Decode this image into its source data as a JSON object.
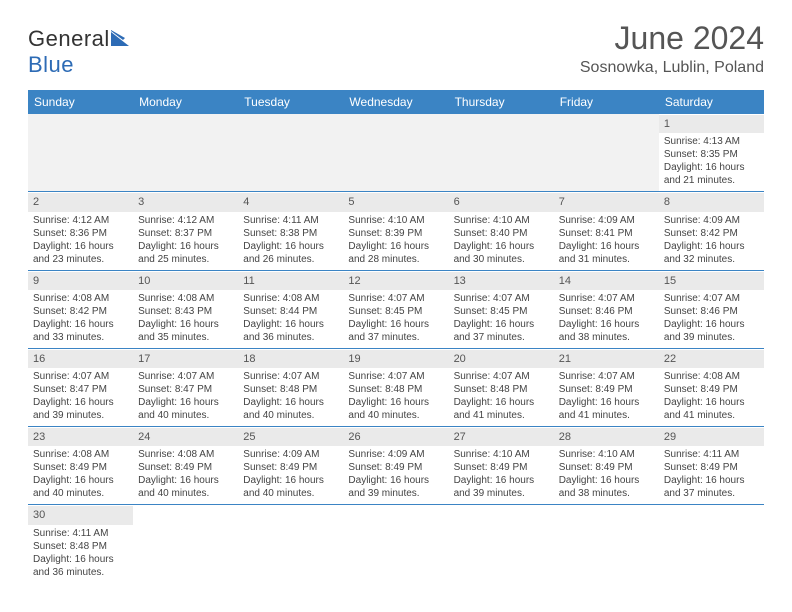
{
  "logo": {
    "text_general": "General",
    "text_blue": "Blue"
  },
  "title": {
    "month": "June 2024",
    "location": "Sosnowka, Lublin, Poland"
  },
  "colors": {
    "header_bg": "#3b84c4",
    "header_text": "#ffffff",
    "daynum_bg": "#eaeaea",
    "empty_bg": "#f2f2f2",
    "rule": "#3b84c4",
    "logo_blue": "#2d6bb5"
  },
  "weekdays": [
    "Sunday",
    "Monday",
    "Tuesday",
    "Wednesday",
    "Thursday",
    "Friday",
    "Saturday"
  ],
  "weeks": [
    [
      null,
      null,
      null,
      null,
      null,
      null,
      {
        "n": "1",
        "sr": "4:13 AM",
        "ss": "8:35 PM",
        "dl": "16 hours and 21 minutes."
      }
    ],
    [
      {
        "n": "2",
        "sr": "4:12 AM",
        "ss": "8:36 PM",
        "dl": "16 hours and 23 minutes."
      },
      {
        "n": "3",
        "sr": "4:12 AM",
        "ss": "8:37 PM",
        "dl": "16 hours and 25 minutes."
      },
      {
        "n": "4",
        "sr": "4:11 AM",
        "ss": "8:38 PM",
        "dl": "16 hours and 26 minutes."
      },
      {
        "n": "5",
        "sr": "4:10 AM",
        "ss": "8:39 PM",
        "dl": "16 hours and 28 minutes."
      },
      {
        "n": "6",
        "sr": "4:10 AM",
        "ss": "8:40 PM",
        "dl": "16 hours and 30 minutes."
      },
      {
        "n": "7",
        "sr": "4:09 AM",
        "ss": "8:41 PM",
        "dl": "16 hours and 31 minutes."
      },
      {
        "n": "8",
        "sr": "4:09 AM",
        "ss": "8:42 PM",
        "dl": "16 hours and 32 minutes."
      }
    ],
    [
      {
        "n": "9",
        "sr": "4:08 AM",
        "ss": "8:42 PM",
        "dl": "16 hours and 33 minutes."
      },
      {
        "n": "10",
        "sr": "4:08 AM",
        "ss": "8:43 PM",
        "dl": "16 hours and 35 minutes."
      },
      {
        "n": "11",
        "sr": "4:08 AM",
        "ss": "8:44 PM",
        "dl": "16 hours and 36 minutes."
      },
      {
        "n": "12",
        "sr": "4:07 AM",
        "ss": "8:45 PM",
        "dl": "16 hours and 37 minutes."
      },
      {
        "n": "13",
        "sr": "4:07 AM",
        "ss": "8:45 PM",
        "dl": "16 hours and 37 minutes."
      },
      {
        "n": "14",
        "sr": "4:07 AM",
        "ss": "8:46 PM",
        "dl": "16 hours and 38 minutes."
      },
      {
        "n": "15",
        "sr": "4:07 AM",
        "ss": "8:46 PM",
        "dl": "16 hours and 39 minutes."
      }
    ],
    [
      {
        "n": "16",
        "sr": "4:07 AM",
        "ss": "8:47 PM",
        "dl": "16 hours and 39 minutes."
      },
      {
        "n": "17",
        "sr": "4:07 AM",
        "ss": "8:47 PM",
        "dl": "16 hours and 40 minutes."
      },
      {
        "n": "18",
        "sr": "4:07 AM",
        "ss": "8:48 PM",
        "dl": "16 hours and 40 minutes."
      },
      {
        "n": "19",
        "sr": "4:07 AM",
        "ss": "8:48 PM",
        "dl": "16 hours and 40 minutes."
      },
      {
        "n": "20",
        "sr": "4:07 AM",
        "ss": "8:48 PM",
        "dl": "16 hours and 41 minutes."
      },
      {
        "n": "21",
        "sr": "4:07 AM",
        "ss": "8:49 PM",
        "dl": "16 hours and 41 minutes."
      },
      {
        "n": "22",
        "sr": "4:08 AM",
        "ss": "8:49 PM",
        "dl": "16 hours and 41 minutes."
      }
    ],
    [
      {
        "n": "23",
        "sr": "4:08 AM",
        "ss": "8:49 PM",
        "dl": "16 hours and 40 minutes."
      },
      {
        "n": "24",
        "sr": "4:08 AM",
        "ss": "8:49 PM",
        "dl": "16 hours and 40 minutes."
      },
      {
        "n": "25",
        "sr": "4:09 AM",
        "ss": "8:49 PM",
        "dl": "16 hours and 40 minutes."
      },
      {
        "n": "26",
        "sr": "4:09 AM",
        "ss": "8:49 PM",
        "dl": "16 hours and 39 minutes."
      },
      {
        "n": "27",
        "sr": "4:10 AM",
        "ss": "8:49 PM",
        "dl": "16 hours and 39 minutes."
      },
      {
        "n": "28",
        "sr": "4:10 AM",
        "ss": "8:49 PM",
        "dl": "16 hours and 38 minutes."
      },
      {
        "n": "29",
        "sr": "4:11 AM",
        "ss": "8:49 PM",
        "dl": "16 hours and 37 minutes."
      }
    ],
    [
      {
        "n": "30",
        "sr": "4:11 AM",
        "ss": "8:48 PM",
        "dl": "16 hours and 36 minutes."
      },
      null,
      null,
      null,
      null,
      null,
      null
    ]
  ],
  "labels": {
    "sunrise": "Sunrise: ",
    "sunset": "Sunset: ",
    "daylight": "Daylight: "
  }
}
